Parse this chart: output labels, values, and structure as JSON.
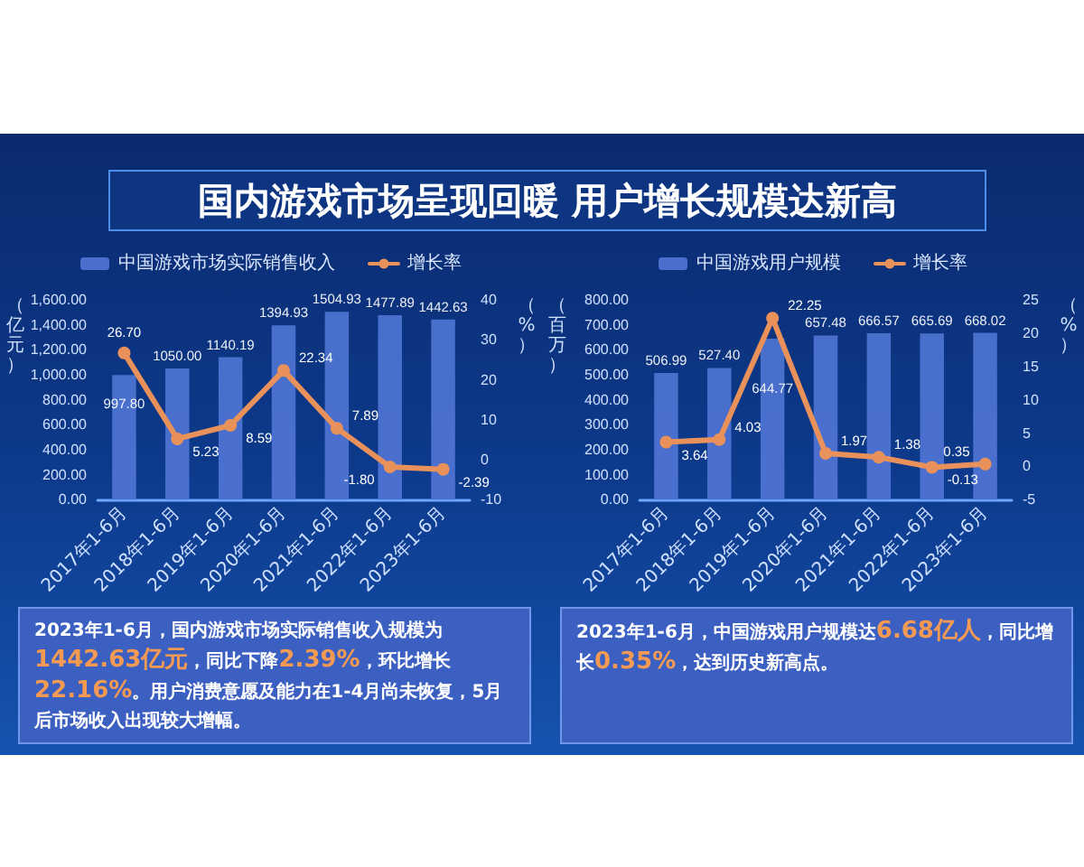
{
  "chart_data": [
    {
      "type": "bar",
      "title": "国内游戏市场呈现回暖 用户增长规模达新高",
      "categories": [
        "2017年1-6月",
        "2018年1-6月",
        "2019年1-6月",
        "2020年1-6月",
        "2021年1-6月",
        "2022年1-6月",
        "2023年1-6月"
      ],
      "series": [
        {
          "name": "中国游戏市场实际销售收入",
          "color": "#4f74d4",
          "values": [
            997.8,
            1050.0,
            1140.19,
            1394.93,
            1504.93,
            1477.89,
            1442.63
          ],
          "value_labels": [
            "997.80",
            "1050.00",
            "1140.19",
            "1394.93",
            "1504.93",
            "1477.89",
            "1442.63"
          ]
        },
        {
          "name": "增长率",
          "type": "line",
          "axis": "y2",
          "color": "#e8915a",
          "values": [
            26.7,
            5.23,
            8.59,
            22.34,
            7.89,
            -1.8,
            -2.39
          ],
          "value_labels": [
            "26.70",
            "5.23",
            "8.59",
            "22.34",
            "7.89",
            "-1.80",
            "-2.39"
          ]
        }
      ],
      "ylabel": "（亿元）",
      "y2label": "（%）",
      "ylim": [
        0,
        1600
      ],
      "yticks": [
        {
          "value": 0,
          "label": "0.00"
        },
        {
          "value": 200,
          "label": "200.00"
        },
        {
          "value": 400,
          "label": "400.00"
        },
        {
          "value": 600,
          "label": "600.00"
        },
        {
          "value": 800,
          "label": "800.00"
        },
        {
          "value": 1000,
          "label": "1,000.00"
        },
        {
          "value": 1200,
          "label": "1,200.00"
        },
        {
          "value": 1400,
          "label": "1,400.00"
        },
        {
          "value": 1600,
          "label": "1,600.00"
        }
      ],
      "y2lim": [
        -10,
        40
      ],
      "y2ticks": [
        -10,
        0,
        10,
        20,
        30,
        40
      ],
      "legend": "top",
      "marker": "circle",
      "line_style": "solid",
      "annotations": [
        "2023年1-6月，国内游戏市场实际销售收入规模为1442.63亿元，同比下降2.39%，环比增长22.16%。用户消费意愿及能力在1-4月尚未恢复，5月后市场收入出现较大增幅。"
      ]
    },
    {
      "type": "bar",
      "categories": [
        "2017年1-6月",
        "2018年1-6月",
        "2019年1-6月",
        "2020年1-6月",
        "2021年1-6月",
        "2022年1-6月",
        "2023年1-6月"
      ],
      "series": [
        {
          "name": "中国游戏用户规模",
          "color": "#4f74d4",
          "values": [
            506.99,
            527.4,
            644.77,
            657.48,
            666.57,
            665.69,
            668.02
          ],
          "value_labels": [
            "506.99",
            "527.40",
            "644.77",
            "657.48",
            "666.57",
            "665.69",
            "668.02"
          ]
        },
        {
          "name": "增长率",
          "type": "line",
          "axis": "y2",
          "color": "#e8915a",
          "values": [
            3.64,
            4.03,
            22.25,
            1.97,
            1.38,
            -0.13,
            0.35
          ],
          "value_labels": [
            "3.64",
            "4.03",
            "22.25",
            "1.97",
            "1.38",
            "-0.13",
            "0.35"
          ]
        }
      ],
      "ylabel": "（百万）",
      "y2label": "（%）",
      "ylim": [
        0,
        800
      ],
      "yticks": [
        {
          "value": 0,
          "label": "0.00"
        },
        {
          "value": 100,
          "label": "100.00"
        },
        {
          "value": 200,
          "label": "200.00"
        },
        {
          "value": 300,
          "label": "300.00"
        },
        {
          "value": 400,
          "label": "400.00"
        },
        {
          "value": 500,
          "label": "500.00"
        },
        {
          "value": 600,
          "label": "600.00"
        },
        {
          "value": 700,
          "label": "700.00"
        },
        {
          "value": 800,
          "label": "800.00"
        }
      ],
      "y2lim": [
        -5,
        25
      ],
      "y2ticks": [
        -5,
        0,
        5,
        10,
        15,
        20,
        25
      ],
      "legend": "top",
      "marker": "circle",
      "line_style": "solid",
      "annotations": [
        "2023年1-6月，中国游戏用户规模达6.68亿人，同比增长0.35%，达到历史新高点。"
      ]
    }
  ]
}
